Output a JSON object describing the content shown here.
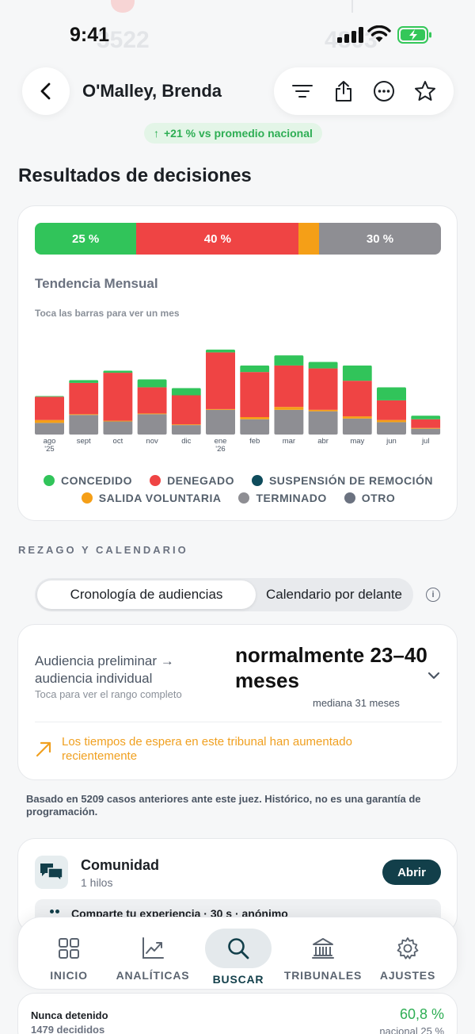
{
  "background": {
    "ghost_left": "3522",
    "ghost_right": "4803"
  },
  "status_bar": {
    "time": "9:41"
  },
  "header": {
    "title": "O'Malley, Brenda"
  },
  "badge": {
    "arrow": "↑",
    "text": "+21 % vs promedio nacional"
  },
  "outcomes": {
    "section_title": "Resultados de decisiones",
    "stack": [
      {
        "label": "25 %",
        "value": 25,
        "color": "#31c45a"
      },
      {
        "label": "40 %",
        "value": 40,
        "color": "#ef4444"
      },
      {
        "label": "",
        "value": 5,
        "color": "#f59f17"
      },
      {
        "label": "30 %",
        "value": 30,
        "color": "#8e8e93"
      }
    ],
    "trend_title": "Tendencia Mensual",
    "trend_hint": "Toca las barras para ver un mes"
  },
  "chart_data": {
    "type": "bar",
    "stacked": true,
    "categories": [
      "ago '25",
      "sept",
      "oct",
      "nov",
      "dic",
      "ene '26",
      "feb",
      "mar",
      "abr",
      "may",
      "jun",
      "jul"
    ],
    "series": [
      {
        "name": "OTRO",
        "color": "#6b7280",
        "values": [
          0,
          0,
          0,
          0,
          0,
          0,
          0,
          0,
          0,
          0,
          0,
          0
        ]
      },
      {
        "name": "TERMINADO",
        "color": "#8e8e93",
        "values": [
          16,
          27,
          18,
          28,
          13,
          34,
          21,
          34,
          32,
          22,
          17,
          8
        ]
      },
      {
        "name": "SALIDA VOLUNTARIA",
        "color": "#f59f17",
        "values": [
          4,
          1,
          1,
          1,
          1,
          1,
          3,
          4,
          2,
          3,
          3,
          1
        ]
      },
      {
        "name": "SUSPENSIÓN DE REMOCIÓN",
        "color": "#0f4c5c",
        "values": [
          0,
          0,
          0,
          0,
          0,
          0,
          0,
          0,
          0,
          0,
          0,
          0
        ]
      },
      {
        "name": "DENEGADO",
        "color": "#ef4444",
        "values": [
          32,
          43,
          66,
          36,
          40,
          78,
          62,
          57,
          57,
          49,
          27,
          12
        ]
      },
      {
        "name": "CONCEDIDO",
        "color": "#31c45a",
        "values": [
          1,
          4,
          3,
          11,
          10,
          4,
          9,
          14,
          9,
          21,
          18,
          5
        ]
      }
    ],
    "ymax": 120,
    "legend_rows": [
      [
        "CONCEDIDO",
        "DENEGADO",
        "SUSPENSIÓN DE REMOCIÓN"
      ],
      [
        "SALIDA VOLUNTARIA",
        "TERMINADO",
        "OTRO"
      ]
    ]
  },
  "backlog": {
    "section_label": "REZAGO Y CALENDARIO",
    "segments": [
      "Cronología de audiencias",
      "Calendario por delante"
    ],
    "info_glyph": "i",
    "stage_label": "Audiencia preliminar → audiencia individual",
    "stage_hint": "Toca para ver el rango completo",
    "range_value": "normalmente 23–40 meses",
    "median": "mediana 31 meses",
    "warning": "Los tiempos de espera en este tribunal han aumentado recientemente",
    "note": "Basado en 5209 casos anteriores ante este juez. Histórico, no es una garantía de programación."
  },
  "community": {
    "title": "Comunidad",
    "count": "1 hilos",
    "open_label": "Abrir",
    "share_text": "Comparte tu experiencia · 30 s · anónimo"
  },
  "tabs": [
    {
      "label": "INICIO",
      "icon": "grid-icon"
    },
    {
      "label": "ANALÍTICAS",
      "icon": "chart-icon"
    },
    {
      "label": "BUSCAR",
      "icon": "search-icon"
    },
    {
      "label": "TRIBUNALES",
      "icon": "courthouse-icon"
    },
    {
      "label": "AJUSTES",
      "icon": "gear-icon"
    }
  ],
  "detention": {
    "label": "Nunca detenido",
    "decided": "1479 decididos",
    "value": "60,8 %",
    "national": "nacional 25 %"
  }
}
